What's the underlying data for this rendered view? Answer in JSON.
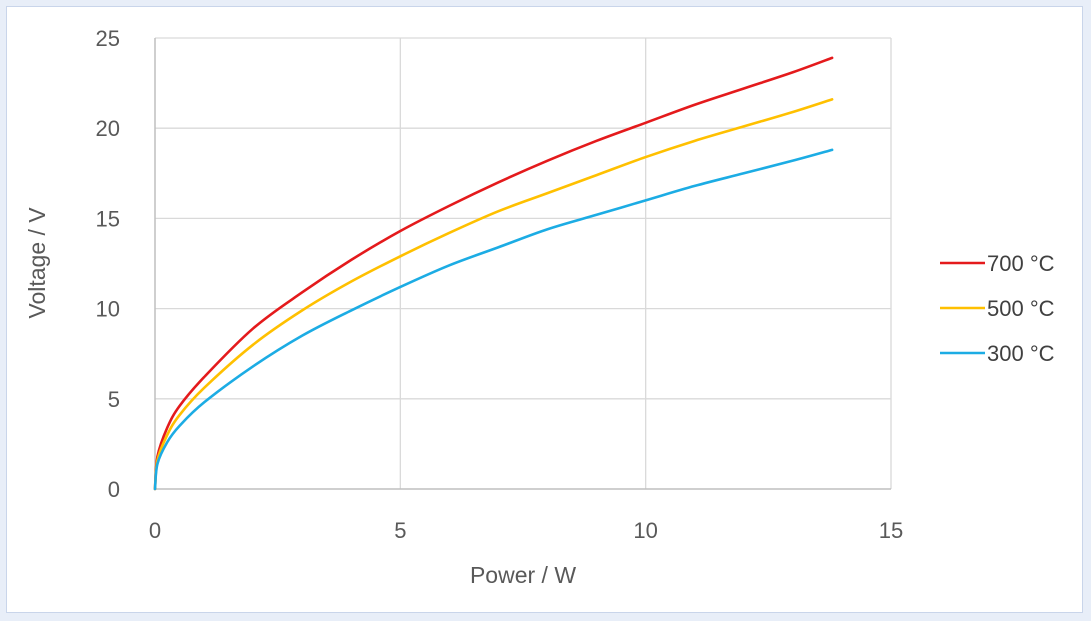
{
  "chart_data": {
    "type": "line",
    "title": "",
    "xlabel": "Power / W",
    "ylabel": "Voltage / V",
    "xlim": [
      0,
      15
    ],
    "ylim": [
      0,
      25
    ],
    "xticks": [
      "0",
      "5",
      "10",
      "15"
    ],
    "yticks": [
      "0",
      "5",
      "10",
      "15",
      "20",
      "25"
    ],
    "grid": true,
    "legend_position": "right",
    "series": [
      {
        "name": "700 °C",
        "color": "#e41a1c",
        "x": [
          0,
          0.05,
          0.25,
          0.5,
          1,
          2,
          3,
          4,
          5,
          6,
          7,
          8,
          9,
          10,
          11,
          12,
          13,
          13.8
        ],
        "y": [
          0,
          1.8,
          3.4,
          4.6,
          6.2,
          8.9,
          10.9,
          12.7,
          14.3,
          15.7,
          17.0,
          18.2,
          19.3,
          20.3,
          21.3,
          22.2,
          23.1,
          23.9
        ]
      },
      {
        "name": "500 °C",
        "color": "#ffc000",
        "x": [
          0,
          0.05,
          0.25,
          0.5,
          1,
          2,
          3,
          4,
          5,
          6,
          7,
          8,
          9,
          10,
          11,
          12,
          13,
          13.8
        ],
        "y": [
          0,
          1.6,
          3.0,
          4.1,
          5.6,
          8.0,
          9.9,
          11.5,
          12.9,
          14.2,
          15.4,
          16.4,
          17.4,
          18.4,
          19.3,
          20.1,
          20.9,
          21.6
        ]
      },
      {
        "name": "300 °C",
        "color": "#1cace4",
        "x": [
          0,
          0.05,
          0.25,
          0.5,
          1,
          2,
          3,
          4,
          5,
          6,
          7,
          8,
          9,
          10,
          11,
          12,
          13,
          13.8
        ],
        "y": [
          0,
          1.4,
          2.6,
          3.5,
          4.8,
          6.8,
          8.5,
          9.9,
          11.2,
          12.4,
          13.4,
          14.4,
          15.2,
          16.0,
          16.8,
          17.5,
          18.2,
          18.8
        ]
      }
    ]
  }
}
